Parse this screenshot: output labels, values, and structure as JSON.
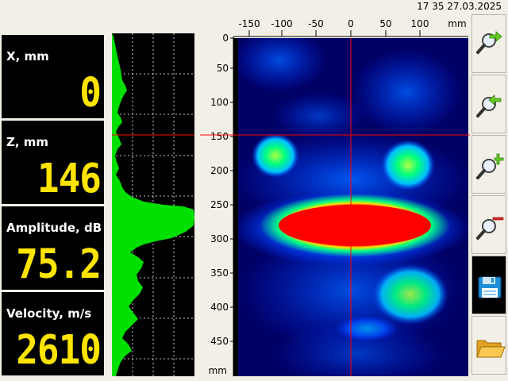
{
  "header": {
    "clock": "17 35 27.03.2025"
  },
  "readouts": [
    {
      "label": "X, mm",
      "value": "0"
    },
    {
      "label": "Z, mm",
      "value": "146"
    },
    {
      "label": "Amplitude, dB",
      "value": "75.2"
    },
    {
      "label": "Velocity, m/s",
      "value": "2610"
    }
  ],
  "bscan": {
    "x_unit": "mm",
    "z_unit": "mm",
    "x_ticks": [
      "-150",
      "-100",
      "-50",
      "0",
      "50",
      "100"
    ],
    "z_ticks": [
      "0",
      "50",
      "100",
      "150",
      "200",
      "250",
      "300",
      "350",
      "400",
      "450"
    ],
    "cursor": {
      "x_mm": 0,
      "z_mm": 146
    },
    "colors": {
      "background": "#000080",
      "low": "#0030ff",
      "mid": "#00ff80",
      "high": "#ff0000",
      "cursor": "#ff0000"
    }
  },
  "ascan": {
    "trace_color": "#00e000",
    "cursor_z_mm": 146
  },
  "toolbar": [
    {
      "icon": "zoom-in-right-arrow-icon",
      "active": false
    },
    {
      "icon": "zoom-in-left-arrow-icon",
      "active": false
    },
    {
      "icon": "zoom-plus-icon",
      "active": false
    },
    {
      "icon": "zoom-minus-icon",
      "active": false
    },
    {
      "icon": "save-floppy-icon",
      "active": true
    },
    {
      "icon": "open-folder-icon",
      "active": false
    }
  ]
}
